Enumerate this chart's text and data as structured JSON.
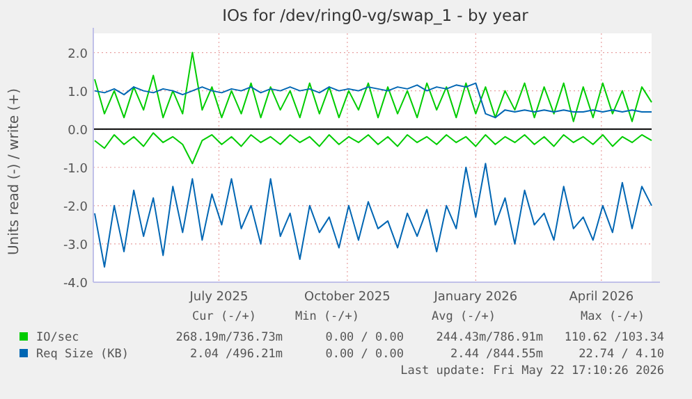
{
  "chart_data": {
    "type": "line",
    "title": "IOs for /dev/ring0-vg/swap_1 - by year",
    "ylabel": "Units read (-) / write (+)",
    "x": [
      "2025-04-18",
      "2025-04-25",
      "2025-05-02",
      "2025-05-09",
      "2025-05-16",
      "2025-05-23",
      "2025-05-30",
      "2025-06-06",
      "2025-06-13",
      "2025-06-20",
      "2025-06-27",
      "2025-07-04",
      "2025-07-11",
      "2025-07-18",
      "2025-07-25",
      "2025-08-01",
      "2025-08-08",
      "2025-08-15",
      "2025-08-22",
      "2025-08-29",
      "2025-09-05",
      "2025-09-12",
      "2025-09-19",
      "2025-09-26",
      "2025-10-03",
      "2025-10-10",
      "2025-10-17",
      "2025-10-24",
      "2025-10-31",
      "2025-11-07",
      "2025-11-14",
      "2025-11-21",
      "2025-11-28",
      "2025-12-05",
      "2025-12-12",
      "2025-12-19",
      "2025-12-26",
      "2026-01-02",
      "2026-01-09",
      "2026-01-16",
      "2026-01-23",
      "2026-01-30",
      "2026-02-06",
      "2026-02-13",
      "2026-02-20",
      "2026-02-27",
      "2026-03-06",
      "2026-03-13",
      "2026-03-20",
      "2026-03-27",
      "2026-04-03",
      "2026-04-10",
      "2026-04-17",
      "2026-04-24",
      "2026-05-01",
      "2026-05-08",
      "2026-05-15",
      "2026-05-22"
    ],
    "series": [
      {
        "name": "IO/sec",
        "color": "#00cc00",
        "values": [
          1.3,
          0.4,
          1.0,
          0.3,
          1.1,
          0.5,
          1.4,
          0.3,
          1.0,
          0.4,
          2.0,
          0.5,
          1.1,
          0.3,
          1.0,
          0.4,
          1.2,
          0.3,
          1.1,
          0.5,
          1.0,
          0.3,
          1.2,
          0.4,
          1.1,
          0.3,
          1.0,
          0.5,
          1.2,
          0.3,
          1.1,
          0.4,
          1.0,
          0.3,
          1.2,
          0.5,
          1.1,
          0.3,
          1.2,
          0.4,
          1.1,
          0.3,
          1.0,
          0.5,
          1.2,
          0.3,
          1.1,
          0.4,
          1.2,
          0.2,
          1.1,
          0.3,
          1.2,
          0.4,
          1.0,
          0.2,
          1.1,
          0.7
        ]
      },
      {
        "name": "Req Size (KB)",
        "color": "#0066b3",
        "values": [
          1.0,
          0.95,
          1.05,
          0.9,
          1.1,
          1.0,
          0.95,
          1.05,
          1.0,
          0.9,
          1.0,
          1.1,
          1.0,
          0.95,
          1.05,
          1.0,
          1.1,
          0.95,
          1.05,
          1.0,
          1.1,
          1.0,
          1.05,
          0.95,
          1.1,
          1.0,
          1.05,
          1.0,
          1.1,
          1.05,
          1.0,
          1.1,
          1.05,
          1.15,
          1.0,
          1.1,
          1.05,
          1.15,
          1.1,
          1.2,
          0.4,
          0.3,
          0.5,
          0.45,
          0.5,
          0.45,
          0.5,
          0.45,
          0.5,
          0.45,
          0.45,
          0.5,
          0.45,
          0.5,
          0.45,
          0.5,
          0.45,
          0.45
        ]
      },
      {
        "color": "#00cc00",
        "values": [
          -0.3,
          -0.5,
          -0.15,
          -0.4,
          -0.2,
          -0.45,
          -0.1,
          -0.35,
          -0.2,
          -0.4,
          -0.9,
          -0.3,
          -0.15,
          -0.4,
          -0.2,
          -0.45,
          -0.15,
          -0.35,
          -0.2,
          -0.4,
          -0.15,
          -0.35,
          -0.2,
          -0.45,
          -0.15,
          -0.4,
          -0.2,
          -0.35,
          -0.15,
          -0.4,
          -0.2,
          -0.45,
          -0.15,
          -0.35,
          -0.2,
          -0.4,
          -0.15,
          -0.35,
          -0.2,
          -0.45,
          -0.15,
          -0.4,
          -0.2,
          -0.35,
          -0.15,
          -0.4,
          -0.2,
          -0.45,
          -0.15,
          -0.35,
          -0.2,
          -0.4,
          -0.15,
          -0.45,
          -0.2,
          -0.35,
          -0.15,
          -0.3
        ]
      },
      {
        "color": "#0066b3",
        "values": [
          -2.2,
          -3.6,
          -2.0,
          -3.2,
          -1.6,
          -2.8,
          -1.8,
          -3.3,
          -1.5,
          -2.7,
          -1.3,
          -2.9,
          -1.7,
          -2.5,
          -1.3,
          -2.6,
          -2.0,
          -3.0,
          -1.3,
          -2.8,
          -2.2,
          -3.4,
          -2.0,
          -2.7,
          -2.3,
          -3.1,
          -2.0,
          -2.9,
          -1.9,
          -2.6,
          -2.4,
          -3.1,
          -2.2,
          -2.8,
          -2.1,
          -3.2,
          -2.0,
          -2.6,
          -1.0,
          -2.3,
          -0.9,
          -2.5,
          -1.8,
          -3.0,
          -1.6,
          -2.5,
          -2.2,
          -2.9,
          -1.5,
          -2.6,
          -2.3,
          -2.9,
          -2.0,
          -2.7,
          -1.4,
          -2.6,
          -1.5,
          -2.0
        ]
      }
    ],
    "xlim": [
      "2025-04-17",
      "2026-05-22"
    ],
    "xticks": [
      {
        "value": "2025-07-16",
        "label": "July 2025"
      },
      {
        "value": "2025-10-16",
        "label": "October 2025"
      },
      {
        "value": "2026-01-16",
        "label": "January 2026"
      },
      {
        "value": "2026-04-16",
        "label": "April 2026"
      }
    ],
    "ylim": [
      -4,
      2.5
    ],
    "yticks": [
      {
        "value": -4,
        "label": "-4.0"
      },
      {
        "value": -3,
        "label": "-3.0"
      },
      {
        "value": -2,
        "label": "-2.0"
      },
      {
        "value": -1,
        "label": "-1.0"
      },
      {
        "value": 0,
        "label": "0.0"
      },
      {
        "value": 1,
        "label": "1.0"
      },
      {
        "value": 2,
        "label": "2.0"
      }
    ],
    "ref_lines": [
      {
        "axis": "y",
        "value": 0,
        "color": "#000000"
      }
    ],
    "grid": true,
    "legend": "bottom",
    "marker": "none",
    "line_style": "solid",
    "annotations": [
      "Cur (-/+)",
      "Min (-/+)",
      "Avg (-/+)",
      "Max (-/+)",
      "268.19m/736.73m",
      "0.00 / 0.00",
      "244.43m/786.91m",
      "110.62 /103.34",
      "2.04 /496.21m",
      "0.00 / 0.00",
      "2.44 /844.55m",
      "22.74 / 4.10",
      "Last update: Fri May 22 17:10:26 2026"
    ]
  }
}
